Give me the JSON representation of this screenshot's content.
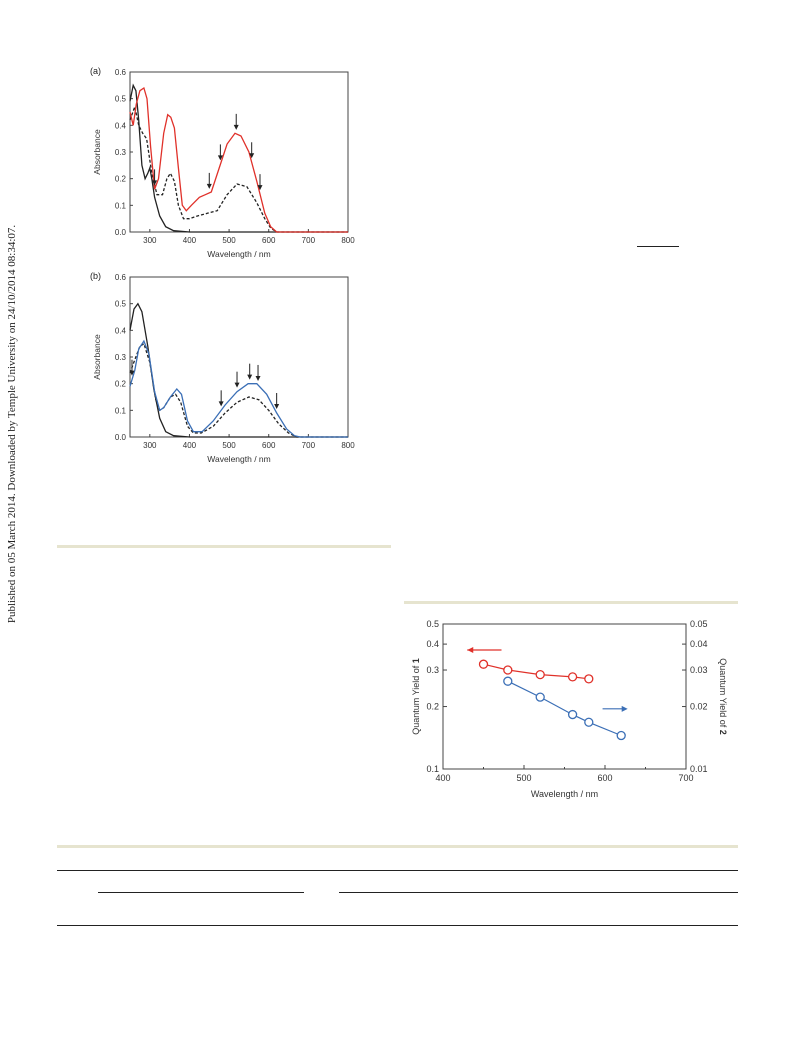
{
  "sidebar": {
    "text": "Published on 05 March 2014. Downloaded by Temple University on 24/10/2014 08:34:07."
  },
  "chart_data": [
    {
      "type": "line",
      "panel_label": "(a)",
      "xlabel": "Wavelength / nm",
      "ylabel": "Absorbance",
      "xlim": [
        250,
        800
      ],
      "ylim": [
        0,
        0.6
      ],
      "xticks": [
        300,
        400,
        500,
        600,
        700,
        800
      ],
      "yticks": [
        0.0,
        0.1,
        0.2,
        0.3,
        0.4,
        0.5,
        0.6
      ],
      "series": [
        {
          "color": "#222222",
          "style": "solid",
          "points": [
            [
              250,
              0.49
            ],
            [
              258,
              0.55
            ],
            [
              265,
              0.53
            ],
            [
              272,
              0.42
            ],
            [
              280,
              0.25
            ],
            [
              288,
              0.2
            ],
            [
              295,
              0.22
            ],
            [
              300,
              0.24
            ],
            [
              305,
              0.2
            ],
            [
              312,
              0.13
            ],
            [
              325,
              0.06
            ],
            [
              340,
              0.02
            ],
            [
              360,
              0.005
            ],
            [
              400,
              0
            ],
            [
              800,
              0
            ]
          ]
        },
        {
          "color": "#222222",
          "style": "dashed",
          "points": [
            [
              250,
              0.42
            ],
            [
              262,
              0.47
            ],
            [
              272,
              0.4
            ],
            [
              282,
              0.37
            ],
            [
              292,
              0.35
            ],
            [
              305,
              0.22
            ],
            [
              318,
              0.14
            ],
            [
              332,
              0.14
            ],
            [
              343,
              0.2
            ],
            [
              352,
              0.22
            ],
            [
              362,
              0.19
            ],
            [
              372,
              0.1
            ],
            [
              385,
              0.05
            ],
            [
              400,
              0.05
            ],
            [
              420,
              0.06
            ],
            [
              445,
              0.07
            ],
            [
              470,
              0.08
            ],
            [
              495,
              0.14
            ],
            [
              520,
              0.18
            ],
            [
              545,
              0.17
            ],
            [
              570,
              0.11
            ],
            [
              590,
              0.05
            ],
            [
              605,
              0.015
            ],
            [
              620,
              0
            ],
            [
              800,
              0
            ]
          ]
        },
        {
          "color": "#e0312a",
          "style": "solid",
          "points": [
            [
              250,
              0.45
            ],
            [
              258,
              0.4
            ],
            [
              266,
              0.48
            ],
            [
              275,
              0.53
            ],
            [
              285,
              0.54
            ],
            [
              293,
              0.5
            ],
            [
              302,
              0.32
            ],
            [
              312,
              0.16
            ],
            [
              322,
              0.2
            ],
            [
              335,
              0.37
            ],
            [
              345,
              0.44
            ],
            [
              353,
              0.43
            ],
            [
              362,
              0.39
            ],
            [
              372,
              0.24
            ],
            [
              382,
              0.1
            ],
            [
              392,
              0.08
            ],
            [
              405,
              0.1
            ],
            [
              425,
              0.13
            ],
            [
              440,
              0.14
            ],
            [
              455,
              0.15
            ],
            [
              475,
              0.24
            ],
            [
              495,
              0.33
            ],
            [
              515,
              0.37
            ],
            [
              530,
              0.36
            ],
            [
              550,
              0.3
            ],
            [
              570,
              0.19
            ],
            [
              590,
              0.07
            ],
            [
              605,
              0.02
            ],
            [
              620,
              0
            ],
            [
              800,
              0
            ]
          ]
        }
      ],
      "annotation_arrows_nm": [
        312,
        450,
        478,
        518,
        557,
        578
      ],
      "annotation": "↓"
    },
    {
      "type": "line",
      "panel_label": "(b)",
      "xlabel": "Wavelength / nm",
      "ylabel": "Absorbance",
      "xlim": [
        250,
        800
      ],
      "ylim": [
        0,
        0.6
      ],
      "xticks": [
        300,
        400,
        500,
        600,
        700,
        800
      ],
      "yticks": [
        0.0,
        0.1,
        0.2,
        0.3,
        0.4,
        0.5,
        0.6
      ],
      "series": [
        {
          "color": "#222222",
          "style": "solid",
          "points": [
            [
              250,
              0.4
            ],
            [
              260,
              0.48
            ],
            [
              270,
              0.5
            ],
            [
              280,
              0.47
            ],
            [
              295,
              0.34
            ],
            [
              310,
              0.18
            ],
            [
              325,
              0.07
            ],
            [
              340,
              0.02
            ],
            [
              360,
              0.005
            ],
            [
              400,
              0
            ],
            [
              800,
              0
            ]
          ]
        },
        {
          "color": "#222222",
          "style": "dashed",
          "points": [
            [
              250,
              0.24
            ],
            [
              262,
              0.29
            ],
            [
              275,
              0.34
            ],
            [
              285,
              0.35
            ],
            [
              300,
              0.28
            ],
            [
              315,
              0.14
            ],
            [
              325,
              0.1
            ],
            [
              335,
              0.11
            ],
            [
              352,
              0.15
            ],
            [
              365,
              0.16
            ],
            [
              378,
              0.13
            ],
            [
              395,
              0.04
            ],
            [
              410,
              0.015
            ],
            [
              430,
              0.015
            ],
            [
              460,
              0.04
            ],
            [
              490,
              0.09
            ],
            [
              520,
              0.13
            ],
            [
              550,
              0.15
            ],
            [
              575,
              0.14
            ],
            [
              600,
              0.1
            ],
            [
              625,
              0.05
            ],
            [
              650,
              0.015
            ],
            [
              670,
              0
            ],
            [
              800,
              0
            ]
          ]
        },
        {
          "color": "#3b6fb6",
          "style": "solid",
          "points": [
            [
              250,
              0.19
            ],
            [
              262,
              0.25
            ],
            [
              272,
              0.33
            ],
            [
              285,
              0.36
            ],
            [
              298,
              0.31
            ],
            [
              312,
              0.17
            ],
            [
              325,
              0.1
            ],
            [
              335,
              0.11
            ],
            [
              352,
              0.15
            ],
            [
              368,
              0.18
            ],
            [
              380,
              0.16
            ],
            [
              395,
              0.06
            ],
            [
              410,
              0.02
            ],
            [
              432,
              0.02
            ],
            [
              460,
              0.06
            ],
            [
              490,
              0.12
            ],
            [
              520,
              0.17
            ],
            [
              548,
              0.2
            ],
            [
              570,
              0.2
            ],
            [
              595,
              0.16
            ],
            [
              620,
              0.09
            ],
            [
              645,
              0.03
            ],
            [
              665,
              0.005
            ],
            [
              680,
              0
            ],
            [
              800,
              0
            ]
          ]
        }
      ],
      "annotation_arrows_nm": [
        255,
        480,
        520,
        552,
        573,
        620
      ],
      "annotation": "↓"
    },
    {
      "type": "scatter",
      "xlabel": "Wavelength / nm",
      "ylabel_left": "Quantum Yield of 1",
      "ylabel_left_parts": [
        "Quantum Yield of ",
        "1"
      ],
      "ylabel_right": "Quantum Yield of 2",
      "ylabel_right_parts": [
        "Quantum Yield of ",
        "2"
      ],
      "xlim": [
        400,
        700
      ],
      "xticks": [
        400,
        500,
        600,
        700
      ],
      "ylim_left": [
        0.1,
        0.5
      ],
      "ylim_right": [
        0.01,
        0.05
      ],
      "yscale": "log",
      "yticks_left": [
        "0.5",
        "0.4",
        "0.3",
        "0.2",
        "0.1"
      ],
      "yticks_left_values": [
        0.5,
        0.4,
        0.3,
        0.2,
        0.1
      ],
      "yticks_right": [
        "0.05",
        "0.04",
        "0.03",
        "0.02",
        "0.01"
      ],
      "yticks_right_values": [
        0.05,
        0.04,
        0.03,
        0.02,
        0.01
      ],
      "series": [
        {
          "axis": "left",
          "color": "#e0312a",
          "x": [
            450,
            480,
            520,
            560,
            580
          ],
          "y": [
            0.32,
            0.3,
            0.285,
            0.278,
            0.272
          ]
        },
        {
          "axis": "right",
          "color": "#3b6fb6",
          "x": [
            480,
            520,
            560,
            580,
            620
          ],
          "y": [
            0.0265,
            0.0222,
            0.0183,
            0.0168,
            0.0145
          ]
        }
      ]
    }
  ]
}
